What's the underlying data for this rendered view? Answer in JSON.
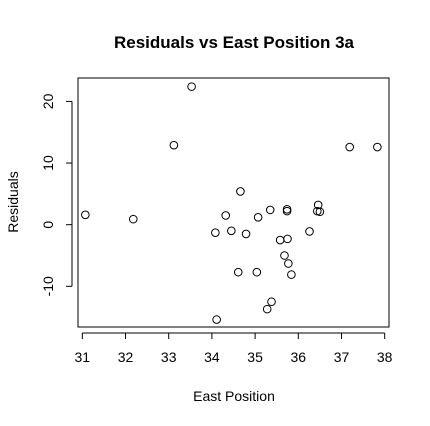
{
  "chart_data": {
    "type": "scatter",
    "title": "Residuals vs East Position 3a",
    "xlabel": "East Position",
    "ylabel": "Residuals",
    "xlim": [
      30.9,
      38.1
    ],
    "ylim": [
      -16.6,
      23.8
    ],
    "xticks": [
      31,
      32,
      33,
      34,
      35,
      36,
      37,
      38
    ],
    "yticks": [
      -10,
      0,
      10,
      20
    ],
    "xtick_labels": [
      "31",
      "32",
      "33",
      "34",
      "35",
      "36",
      "37",
      "38"
    ],
    "ytick_labels": [
      "-10",
      "0",
      "10",
      "20"
    ],
    "grid": false,
    "marker": "open-circle",
    "points": [
      {
        "x": 31.07,
        "y": 1.6
      },
      {
        "x": 32.18,
        "y": 0.9
      },
      {
        "x": 33.12,
        "y": 12.9
      },
      {
        "x": 33.53,
        "y": 22.4
      },
      {
        "x": 34.08,
        "y": -1.3
      },
      {
        "x": 34.11,
        "y": -15.4
      },
      {
        "x": 34.32,
        "y": 1.5
      },
      {
        "x": 34.45,
        "y": -1.0
      },
      {
        "x": 34.61,
        "y": -7.7
      },
      {
        "x": 34.66,
        "y": 5.4
      },
      {
        "x": 34.79,
        "y": -1.5
      },
      {
        "x": 35.04,
        "y": -7.7
      },
      {
        "x": 35.07,
        "y": 1.2
      },
      {
        "x": 35.28,
        "y": -13.7
      },
      {
        "x": 35.38,
        "y": -12.5
      },
      {
        "x": 35.35,
        "y": 2.4
      },
      {
        "x": 35.58,
        "y": -2.5
      },
      {
        "x": 35.68,
        "y": -5.0
      },
      {
        "x": 35.74,
        "y": 2.2
      },
      {
        "x": 35.74,
        "y": 2.5
      },
      {
        "x": 35.75,
        "y": -2.3
      },
      {
        "x": 35.77,
        "y": -6.3
      },
      {
        "x": 35.84,
        "y": -8.1
      },
      {
        "x": 36.26,
        "y": -1.1
      },
      {
        "x": 36.44,
        "y": 2.2
      },
      {
        "x": 36.46,
        "y": 3.2
      },
      {
        "x": 36.5,
        "y": 2.1
      },
      {
        "x": 37.19,
        "y": 12.6
      },
      {
        "x": 37.83,
        "y": 12.6
      }
    ]
  }
}
